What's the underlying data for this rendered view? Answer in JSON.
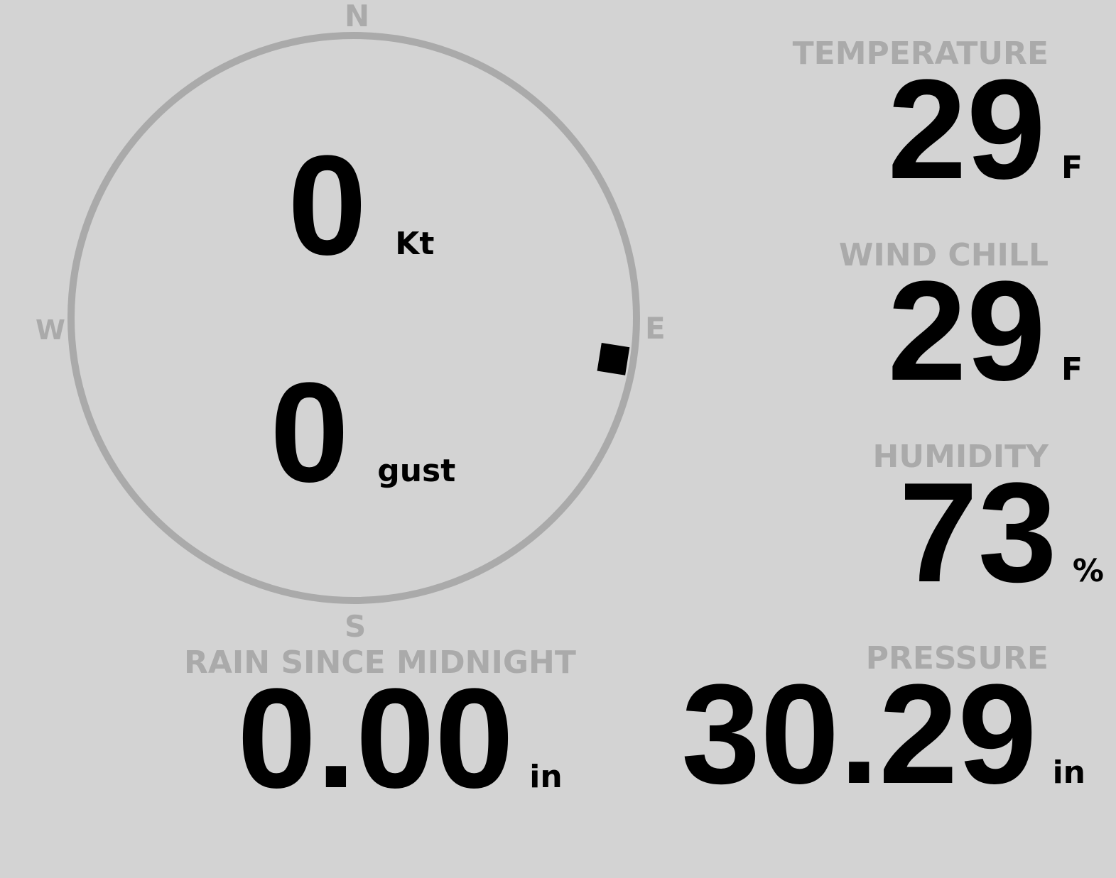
{
  "compass": {
    "north": "N",
    "south": "S",
    "east": "E",
    "west": "W",
    "direction_deg": 99,
    "ring_color": "#aaaaaa",
    "marker_color": "#000000"
  },
  "wind": {
    "speed": "0",
    "speed_unit": "Kt",
    "gust": "0",
    "gust_unit": "gust"
  },
  "temperature": {
    "label": "TEMPERATURE",
    "value": "29",
    "unit": "F"
  },
  "wind_chill": {
    "label": "WIND CHILL",
    "value": "29",
    "unit": "F"
  },
  "humidity": {
    "label": "HUMIDITY",
    "value": "73",
    "unit": "%"
  },
  "rain": {
    "label": "RAIN SINCE MIDNIGHT",
    "value": "0.00",
    "unit": "in"
  },
  "pressure": {
    "label": "PRESSURE",
    "value": "30.29",
    "unit": "in"
  }
}
